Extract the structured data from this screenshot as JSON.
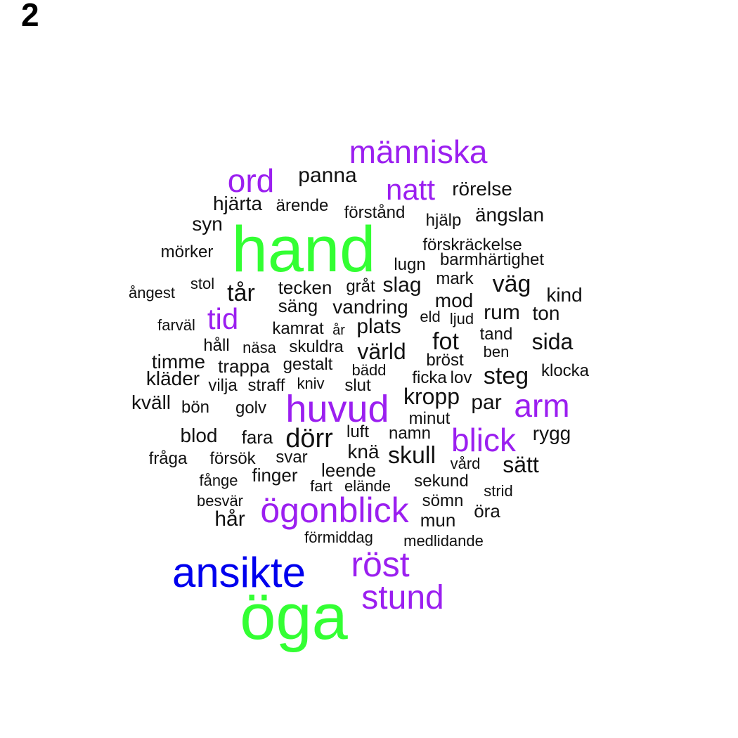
{
  "panel_label": "2",
  "colors": {
    "green": "#33ff33",
    "blue": "#0000ee",
    "purple": "#9b1ff0",
    "black": "#111111"
  },
  "words": [
    {
      "text": "hand",
      "color": "green"
    },
    {
      "text": "öga",
      "color": "green"
    },
    {
      "text": "ansikte",
      "color": "blue"
    },
    {
      "text": "människa",
      "color": "purple"
    },
    {
      "text": "ord",
      "color": "purple"
    },
    {
      "text": "natt",
      "color": "purple"
    },
    {
      "text": "tid",
      "color": "purple"
    },
    {
      "text": "huvud",
      "color": "purple"
    },
    {
      "text": "arm",
      "color": "purple"
    },
    {
      "text": "blick",
      "color": "purple"
    },
    {
      "text": "ögonblick",
      "color": "purple"
    },
    {
      "text": "röst",
      "color": "purple"
    },
    {
      "text": "stund",
      "color": "purple"
    },
    {
      "text": "panna",
      "color": "black"
    },
    {
      "text": "rörelse",
      "color": "black"
    },
    {
      "text": "hjärta",
      "color": "black"
    },
    {
      "text": "ärende",
      "color": "black"
    },
    {
      "text": "förstånd",
      "color": "black"
    },
    {
      "text": "hjälp",
      "color": "black"
    },
    {
      "text": "ängslan",
      "color": "black"
    },
    {
      "text": "syn",
      "color": "black"
    },
    {
      "text": "mörker",
      "color": "black"
    },
    {
      "text": "förskräckelse",
      "color": "black"
    },
    {
      "text": "lugn",
      "color": "black"
    },
    {
      "text": "barmhärtighet",
      "color": "black"
    },
    {
      "text": "stol",
      "color": "black"
    },
    {
      "text": "ångest",
      "color": "black"
    },
    {
      "text": "tår",
      "color": "black"
    },
    {
      "text": "tecken",
      "color": "black"
    },
    {
      "text": "gråt",
      "color": "black"
    },
    {
      "text": "slag",
      "color": "black"
    },
    {
      "text": "mark",
      "color": "black"
    },
    {
      "text": "väg",
      "color": "black"
    },
    {
      "text": "kind",
      "color": "black"
    },
    {
      "text": "säng",
      "color": "black"
    },
    {
      "text": "vandring",
      "color": "black"
    },
    {
      "text": "mod",
      "color": "black"
    },
    {
      "text": "rum",
      "color": "black"
    },
    {
      "text": "ton",
      "color": "black"
    },
    {
      "text": "eld",
      "color": "black"
    },
    {
      "text": "ljud",
      "color": "black"
    },
    {
      "text": "farväl",
      "color": "black"
    },
    {
      "text": "kamrat",
      "color": "black"
    },
    {
      "text": "år",
      "color": "black"
    },
    {
      "text": "plats",
      "color": "black"
    },
    {
      "text": "tand",
      "color": "black"
    },
    {
      "text": "fot",
      "color": "black"
    },
    {
      "text": "sida",
      "color": "black"
    },
    {
      "text": "håll",
      "color": "black"
    },
    {
      "text": "näsa",
      "color": "black"
    },
    {
      "text": "skuldra",
      "color": "black"
    },
    {
      "text": "värld",
      "color": "black"
    },
    {
      "text": "ben",
      "color": "black"
    },
    {
      "text": "timme",
      "color": "black"
    },
    {
      "text": "trappa",
      "color": "black"
    },
    {
      "text": "gestalt",
      "color": "black"
    },
    {
      "text": "bröst",
      "color": "black"
    },
    {
      "text": "bädd",
      "color": "black"
    },
    {
      "text": "klocka",
      "color": "black"
    },
    {
      "text": "kläder",
      "color": "black"
    },
    {
      "text": "vilja",
      "color": "black"
    },
    {
      "text": "straff",
      "color": "black"
    },
    {
      "text": "kniv",
      "color": "black"
    },
    {
      "text": "slut",
      "color": "black"
    },
    {
      "text": "ficka",
      "color": "black"
    },
    {
      "text": "lov",
      "color": "black"
    },
    {
      "text": "steg",
      "color": "black"
    },
    {
      "text": "kropp",
      "color": "black"
    },
    {
      "text": "par",
      "color": "black"
    },
    {
      "text": "kväll",
      "color": "black"
    },
    {
      "text": "bön",
      "color": "black"
    },
    {
      "text": "golv",
      "color": "black"
    },
    {
      "text": "minut",
      "color": "black"
    },
    {
      "text": "blod",
      "color": "black"
    },
    {
      "text": "fara",
      "color": "black"
    },
    {
      "text": "dörr",
      "color": "black"
    },
    {
      "text": "luft",
      "color": "black"
    },
    {
      "text": "namn",
      "color": "black"
    },
    {
      "text": "rygg",
      "color": "black"
    },
    {
      "text": "fråga",
      "color": "black"
    },
    {
      "text": "försök",
      "color": "black"
    },
    {
      "text": "svar",
      "color": "black"
    },
    {
      "text": "knä",
      "color": "black"
    },
    {
      "text": "skull",
      "color": "black"
    },
    {
      "text": "vård",
      "color": "black"
    },
    {
      "text": "sätt",
      "color": "black"
    },
    {
      "text": "fånge",
      "color": "black"
    },
    {
      "text": "finger",
      "color": "black"
    },
    {
      "text": "leende",
      "color": "black"
    },
    {
      "text": "fart",
      "color": "black"
    },
    {
      "text": "elände",
      "color": "black"
    },
    {
      "text": "sekund",
      "color": "black"
    },
    {
      "text": "strid",
      "color": "black"
    },
    {
      "text": "besvär",
      "color": "black"
    },
    {
      "text": "sömn",
      "color": "black"
    },
    {
      "text": "öra",
      "color": "black"
    },
    {
      "text": "hår",
      "color": "black"
    },
    {
      "text": "mun",
      "color": "black"
    },
    {
      "text": "förmiddag",
      "color": "black"
    },
    {
      "text": "medlidande",
      "color": "black"
    }
  ]
}
